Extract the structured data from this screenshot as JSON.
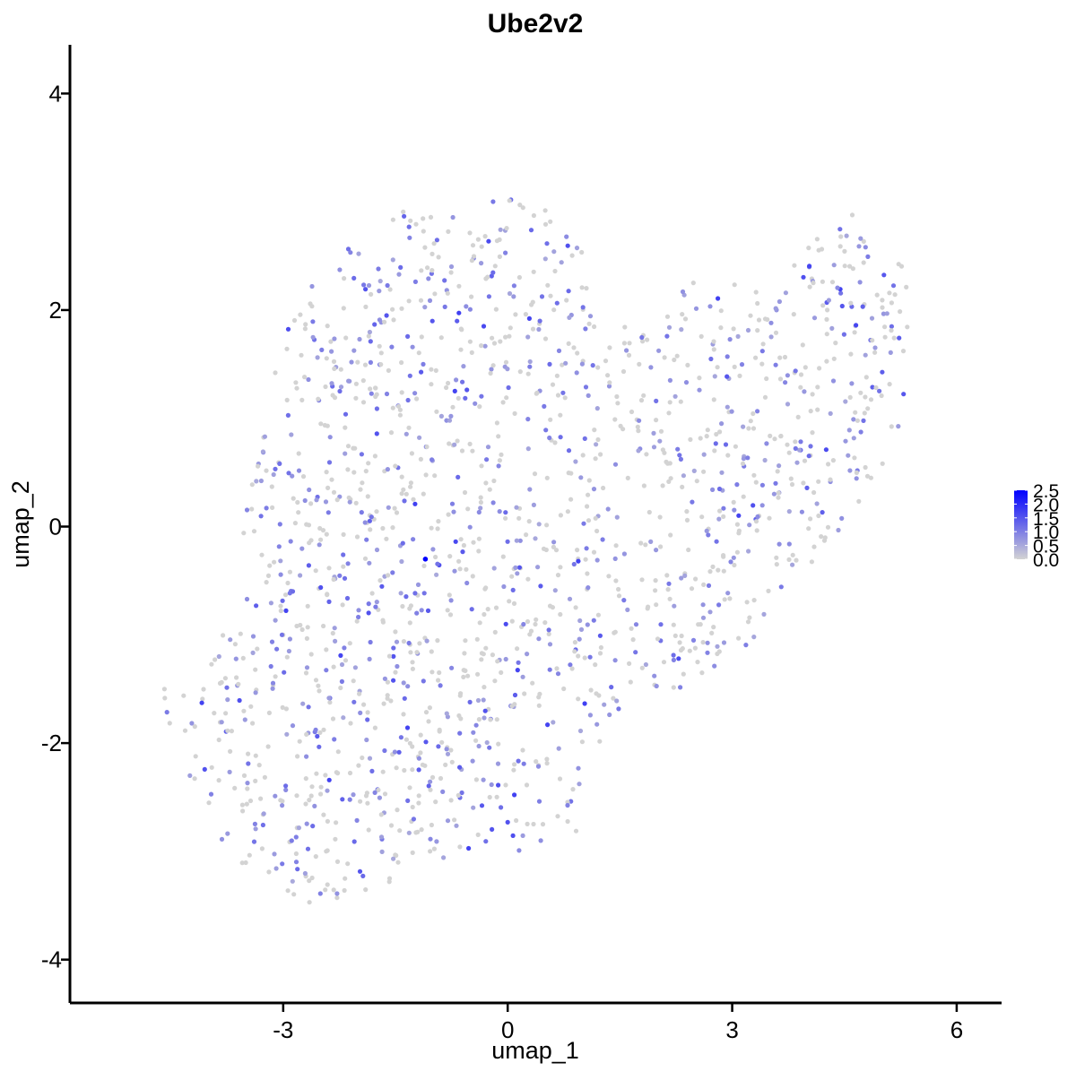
{
  "chart_data": {
    "type": "scatter",
    "title": "Ube2v2",
    "xlabel": "umap_1",
    "ylabel": "umap_2",
    "xlim": [
      -5.85,
      6.6
    ],
    "ylim": [
      -4.4,
      4.45
    ],
    "x_ticks": [
      -3,
      0,
      3,
      6
    ],
    "y_ticks": [
      -4,
      -2,
      0,
      2,
      4
    ],
    "x_tick_labels": [
      "-3",
      "0",
      "3",
      "6"
    ],
    "y_tick_labels": [
      "-4",
      "-2",
      "0",
      "2",
      "4"
    ],
    "grid": false,
    "legend": {
      "placement": "right",
      "type": "colorbar",
      "range": [
        0,
        2.5
      ],
      "ticks": [
        0,
        0.5,
        1,
        1.5,
        2,
        2.5
      ],
      "tick_labels": [
        "0.0",
        "0.5",
        "1.0",
        "1.5",
        "2.0",
        "2.5"
      ],
      "low_color": "#d3d3d3",
      "high_color": "#0000ff"
    },
    "approximate_point_count": 1700,
    "notable_points": [
      {
        "x": -1.1,
        "y": -0.3,
        "value": 2.5
      }
    ],
    "cluster_outline": {
      "description": "single cloud of cells",
      "shape": [
        [
          -4.75,
          -1.25
        ],
        [
          -4.45,
          -1.65
        ],
        [
          -4.1,
          -1.3
        ],
        [
          -3.95,
          -1.15
        ],
        [
          -3.55,
          -0.65
        ],
        [
          -3.6,
          -0.05
        ],
        [
          -3.35,
          0.55
        ],
        [
          -3.3,
          0.95
        ],
        [
          -3.1,
          1.65
        ],
        [
          -2.75,
          2.1
        ],
        [
          -2.25,
          2.6
        ],
        [
          -1.6,
          2.95
        ],
        [
          -0.85,
          3.0
        ],
        [
          -0.2,
          3.05
        ],
        [
          0.35,
          3.0
        ],
        [
          0.85,
          2.75
        ],
        [
          1.15,
          2.35
        ],
        [
          1.2,
          1.95
        ],
        [
          1.65,
          1.85
        ],
        [
          2.05,
          1.95
        ],
        [
          2.4,
          2.25
        ],
        [
          2.9,
          2.35
        ],
        [
          3.35,
          2.55
        ],
        [
          3.75,
          2.5
        ],
        [
          4.15,
          2.7
        ],
        [
          4.45,
          3.0
        ],
        [
          4.85,
          2.7
        ],
        [
          5.15,
          2.55
        ],
        [
          5.4,
          2.35
        ],
        [
          5.35,
          1.85
        ],
        [
          5.3,
          1.05
        ],
        [
          5.05,
          0.6
        ],
        [
          4.8,
          0.2
        ],
        [
          4.45,
          -0.1
        ],
        [
          3.95,
          -0.4
        ],
        [
          3.6,
          -0.7
        ],
        [
          3.3,
          -1.05
        ],
        [
          3.0,
          -1.25
        ],
        [
          2.65,
          -1.4
        ],
        [
          2.1,
          -1.55
        ],
        [
          1.55,
          -1.75
        ],
        [
          1.15,
          -2.05
        ],
        [
          0.95,
          -2.5
        ],
        [
          0.9,
          -2.95
        ],
        [
          0.3,
          -3.05
        ],
        [
          -0.3,
          -3.0
        ],
        [
          -0.8,
          -3.05
        ],
        [
          -1.2,
          -3.15
        ],
        [
          -1.6,
          -3.3
        ],
        [
          -2.2,
          -3.45
        ],
        [
          -2.6,
          -3.5
        ],
        [
          -3.0,
          -3.4
        ],
        [
          -3.4,
          -3.2
        ],
        [
          -3.8,
          -2.95
        ],
        [
          -4.05,
          -2.6
        ],
        [
          -4.3,
          -2.3
        ],
        [
          -4.5,
          -1.9
        ]
      ]
    }
  }
}
